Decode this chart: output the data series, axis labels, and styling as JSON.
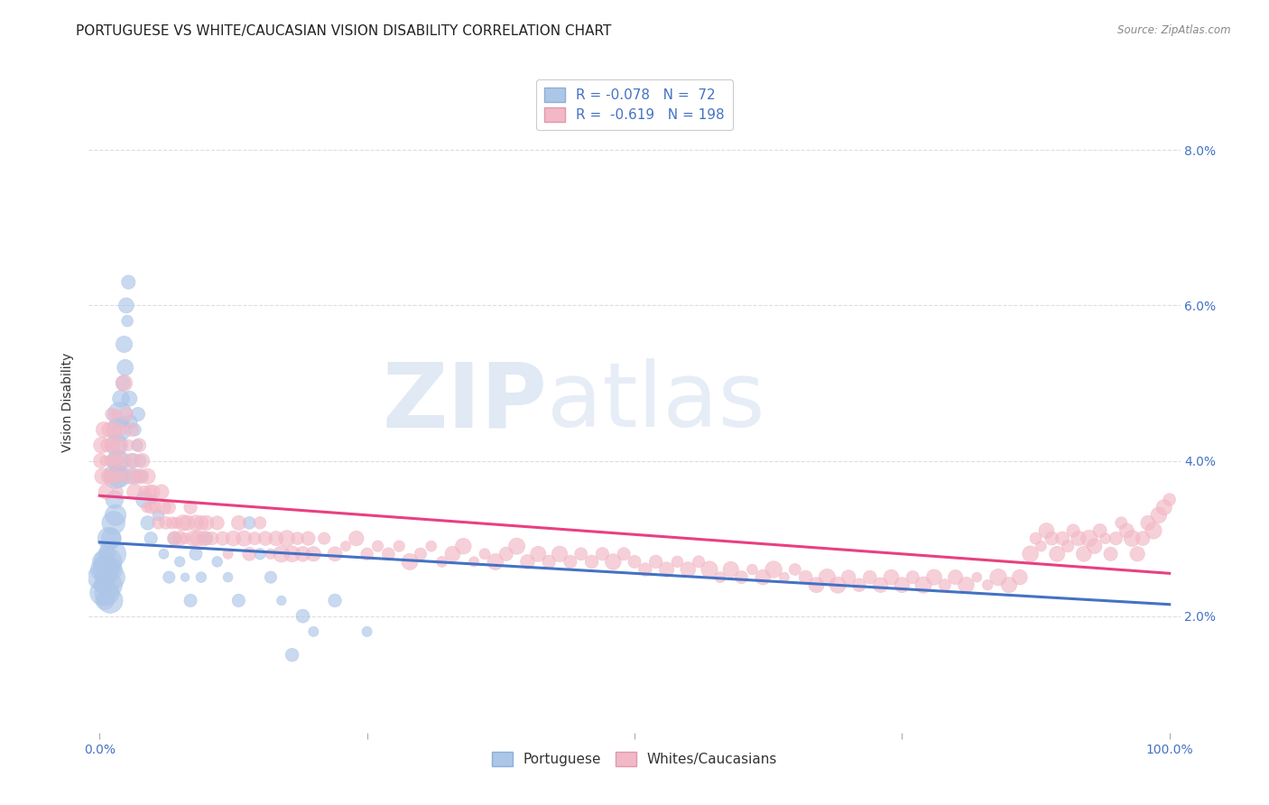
{
  "title": "PORTUGUESE VS WHITE/CAUCASIAN VISION DISABILITY CORRELATION CHART",
  "source": "Source: ZipAtlas.com",
  "ylabel": "Vision Disability",
  "ytick_labels": [
    "2.0%",
    "4.0%",
    "6.0%",
    "8.0%"
  ],
  "ytick_values": [
    0.02,
    0.04,
    0.06,
    0.08
  ],
  "xtick_labels": [
    "0.0%",
    "",
    "",
    "",
    "100.0%"
  ],
  "xtick_values": [
    0.0,
    0.25,
    0.5,
    0.75,
    1.0
  ],
  "portuguese_scatter": [
    [
      0.001,
      0.025
    ],
    [
      0.002,
      0.024
    ],
    [
      0.003,
      0.026
    ],
    [
      0.003,
      0.023
    ],
    [
      0.004,
      0.027
    ],
    [
      0.005,
      0.025
    ],
    [
      0.005,
      0.022
    ],
    [
      0.006,
      0.026
    ],
    [
      0.006,
      0.024
    ],
    [
      0.007,
      0.028
    ],
    [
      0.007,
      0.023
    ],
    [
      0.008,
      0.027
    ],
    [
      0.008,
      0.025
    ],
    [
      0.009,
      0.03
    ],
    [
      0.009,
      0.024
    ],
    [
      0.01,
      0.026
    ],
    [
      0.01,
      0.022
    ],
    [
      0.011,
      0.03
    ],
    [
      0.012,
      0.028
    ],
    [
      0.012,
      0.025
    ],
    [
      0.013,
      0.032
    ],
    [
      0.014,
      0.035
    ],
    [
      0.015,
      0.033
    ],
    [
      0.015,
      0.038
    ],
    [
      0.016,
      0.042
    ],
    [
      0.017,
      0.04
    ],
    [
      0.018,
      0.044
    ],
    [
      0.018,
      0.038
    ],
    [
      0.019,
      0.046
    ],
    [
      0.02,
      0.048
    ],
    [
      0.021,
      0.045
    ],
    [
      0.022,
      0.05
    ],
    [
      0.023,
      0.055
    ],
    [
      0.024,
      0.052
    ],
    [
      0.025,
      0.06
    ],
    [
      0.026,
      0.058
    ],
    [
      0.027,
      0.063
    ],
    [
      0.028,
      0.048
    ],
    [
      0.029,
      0.045
    ],
    [
      0.03,
      0.04
    ],
    [
      0.032,
      0.038
    ],
    [
      0.033,
      0.044
    ],
    [
      0.035,
      0.042
    ],
    [
      0.036,
      0.046
    ],
    [
      0.038,
      0.04
    ],
    [
      0.04,
      0.038
    ],
    [
      0.042,
      0.035
    ],
    [
      0.045,
      0.032
    ],
    [
      0.048,
      0.03
    ],
    [
      0.05,
      0.035
    ],
    [
      0.055,
      0.033
    ],
    [
      0.06,
      0.028
    ],
    [
      0.065,
      0.025
    ],
    [
      0.07,
      0.03
    ],
    [
      0.075,
      0.027
    ],
    [
      0.08,
      0.025
    ],
    [
      0.085,
      0.022
    ],
    [
      0.09,
      0.028
    ],
    [
      0.095,
      0.025
    ],
    [
      0.1,
      0.03
    ],
    [
      0.11,
      0.027
    ],
    [
      0.12,
      0.025
    ],
    [
      0.13,
      0.022
    ],
    [
      0.14,
      0.032
    ],
    [
      0.15,
      0.028
    ],
    [
      0.16,
      0.025
    ],
    [
      0.17,
      0.022
    ],
    [
      0.18,
      0.015
    ],
    [
      0.19,
      0.02
    ],
    [
      0.2,
      0.018
    ],
    [
      0.22,
      0.022
    ],
    [
      0.25,
      0.018
    ]
  ],
  "whites_scatter": [
    [
      0.001,
      0.04
    ],
    [
      0.002,
      0.042
    ],
    [
      0.003,
      0.038
    ],
    [
      0.004,
      0.044
    ],
    [
      0.005,
      0.04
    ],
    [
      0.006,
      0.036
    ],
    [
      0.007,
      0.042
    ],
    [
      0.008,
      0.038
    ],
    [
      0.009,
      0.044
    ],
    [
      0.01,
      0.04
    ],
    [
      0.011,
      0.046
    ],
    [
      0.012,
      0.042
    ],
    [
      0.013,
      0.038
    ],
    [
      0.014,
      0.044
    ],
    [
      0.015,
      0.04
    ],
    [
      0.016,
      0.046
    ],
    [
      0.017,
      0.036
    ],
    [
      0.018,
      0.042
    ],
    [
      0.019,
      0.038
    ],
    [
      0.02,
      0.044
    ],
    [
      0.022,
      0.04
    ],
    [
      0.023,
      0.05
    ],
    [
      0.025,
      0.046
    ],
    [
      0.027,
      0.042
    ],
    [
      0.028,
      0.038
    ],
    [
      0.03,
      0.044
    ],
    [
      0.032,
      0.04
    ],
    [
      0.033,
      0.036
    ],
    [
      0.035,
      0.038
    ],
    [
      0.037,
      0.042
    ],
    [
      0.038,
      0.038
    ],
    [
      0.04,
      0.04
    ],
    [
      0.042,
      0.036
    ],
    [
      0.044,
      0.034
    ],
    [
      0.045,
      0.038
    ],
    [
      0.047,
      0.036
    ],
    [
      0.048,
      0.034
    ],
    [
      0.05,
      0.036
    ],
    [
      0.052,
      0.034
    ],
    [
      0.055,
      0.032
    ],
    [
      0.058,
      0.036
    ],
    [
      0.06,
      0.034
    ],
    [
      0.062,
      0.032
    ],
    [
      0.065,
      0.034
    ],
    [
      0.068,
      0.032
    ],
    [
      0.07,
      0.03
    ],
    [
      0.072,
      0.032
    ],
    [
      0.075,
      0.03
    ],
    [
      0.078,
      0.032
    ],
    [
      0.08,
      0.03
    ],
    [
      0.082,
      0.032
    ],
    [
      0.085,
      0.034
    ],
    [
      0.088,
      0.03
    ],
    [
      0.09,
      0.032
    ],
    [
      0.092,
      0.03
    ],
    [
      0.095,
      0.032
    ],
    [
      0.098,
      0.03
    ],
    [
      0.1,
      0.032
    ],
    [
      0.105,
      0.03
    ],
    [
      0.11,
      0.032
    ],
    [
      0.115,
      0.03
    ],
    [
      0.12,
      0.028
    ],
    [
      0.125,
      0.03
    ],
    [
      0.13,
      0.032
    ],
    [
      0.135,
      0.03
    ],
    [
      0.14,
      0.028
    ],
    [
      0.145,
      0.03
    ],
    [
      0.15,
      0.032
    ],
    [
      0.155,
      0.03
    ],
    [
      0.16,
      0.028
    ],
    [
      0.165,
      0.03
    ],
    [
      0.17,
      0.028
    ],
    [
      0.175,
      0.03
    ],
    [
      0.18,
      0.028
    ],
    [
      0.185,
      0.03
    ],
    [
      0.19,
      0.028
    ],
    [
      0.195,
      0.03
    ],
    [
      0.2,
      0.028
    ],
    [
      0.21,
      0.03
    ],
    [
      0.22,
      0.028
    ],
    [
      0.23,
      0.029
    ],
    [
      0.24,
      0.03
    ],
    [
      0.25,
      0.028
    ],
    [
      0.26,
      0.029
    ],
    [
      0.27,
      0.028
    ],
    [
      0.28,
      0.029
    ],
    [
      0.29,
      0.027
    ],
    [
      0.3,
      0.028
    ],
    [
      0.31,
      0.029
    ],
    [
      0.32,
      0.027
    ],
    [
      0.33,
      0.028
    ],
    [
      0.34,
      0.029
    ],
    [
      0.35,
      0.027
    ],
    [
      0.36,
      0.028
    ],
    [
      0.37,
      0.027
    ],
    [
      0.38,
      0.028
    ],
    [
      0.39,
      0.029
    ],
    [
      0.4,
      0.027
    ],
    [
      0.41,
      0.028
    ],
    [
      0.42,
      0.027
    ],
    [
      0.43,
      0.028
    ],
    [
      0.44,
      0.027
    ],
    [
      0.45,
      0.028
    ],
    [
      0.46,
      0.027
    ],
    [
      0.47,
      0.028
    ],
    [
      0.48,
      0.027
    ],
    [
      0.49,
      0.028
    ],
    [
      0.5,
      0.027
    ],
    [
      0.51,
      0.026
    ],
    [
      0.52,
      0.027
    ],
    [
      0.53,
      0.026
    ],
    [
      0.54,
      0.027
    ],
    [
      0.55,
      0.026
    ],
    [
      0.56,
      0.027
    ],
    [
      0.57,
      0.026
    ],
    [
      0.58,
      0.025
    ],
    [
      0.59,
      0.026
    ],
    [
      0.6,
      0.025
    ],
    [
      0.61,
      0.026
    ],
    [
      0.62,
      0.025
    ],
    [
      0.63,
      0.026
    ],
    [
      0.64,
      0.025
    ],
    [
      0.65,
      0.026
    ],
    [
      0.66,
      0.025
    ],
    [
      0.67,
      0.024
    ],
    [
      0.68,
      0.025
    ],
    [
      0.69,
      0.024
    ],
    [
      0.7,
      0.025
    ],
    [
      0.71,
      0.024
    ],
    [
      0.72,
      0.025
    ],
    [
      0.73,
      0.024
    ],
    [
      0.74,
      0.025
    ],
    [
      0.75,
      0.024
    ],
    [
      0.76,
      0.025
    ],
    [
      0.77,
      0.024
    ],
    [
      0.78,
      0.025
    ],
    [
      0.79,
      0.024
    ],
    [
      0.8,
      0.025
    ],
    [
      0.81,
      0.024
    ],
    [
      0.82,
      0.025
    ],
    [
      0.83,
      0.024
    ],
    [
      0.84,
      0.025
    ],
    [
      0.85,
      0.024
    ],
    [
      0.86,
      0.025
    ],
    [
      0.87,
      0.028
    ],
    [
      0.875,
      0.03
    ],
    [
      0.88,
      0.029
    ],
    [
      0.885,
      0.031
    ],
    [
      0.89,
      0.03
    ],
    [
      0.895,
      0.028
    ],
    [
      0.9,
      0.03
    ],
    [
      0.905,
      0.029
    ],
    [
      0.91,
      0.031
    ],
    [
      0.915,
      0.03
    ],
    [
      0.92,
      0.028
    ],
    [
      0.925,
      0.03
    ],
    [
      0.93,
      0.029
    ],
    [
      0.935,
      0.031
    ],
    [
      0.94,
      0.03
    ],
    [
      0.945,
      0.028
    ],
    [
      0.95,
      0.03
    ],
    [
      0.955,
      0.032
    ],
    [
      0.96,
      0.031
    ],
    [
      0.965,
      0.03
    ],
    [
      0.97,
      0.028
    ],
    [
      0.975,
      0.03
    ],
    [
      0.98,
      0.032
    ],
    [
      0.985,
      0.031
    ],
    [
      0.99,
      0.033
    ],
    [
      0.995,
      0.034
    ],
    [
      1.0,
      0.035
    ]
  ],
  "blue_line": {
    "x0": 0.0,
    "y0": 0.0295,
    "x1": 1.0,
    "y1": 0.0215
  },
  "pink_line": {
    "x0": 0.0,
    "y0": 0.0355,
    "x1": 1.0,
    "y1": 0.0255
  },
  "xlim": [
    -0.01,
    1.01
  ],
  "ylim": [
    0.005,
    0.09
  ],
  "watermark_text": "ZIP",
  "watermark_text2": "atlas",
  "background_color": "#ffffff",
  "grid_color": "#dddddd",
  "title_color": "#222222",
  "scatter_blue_face": "#adc6e8",
  "scatter_blue_edge": "#adc6e8",
  "scatter_pink_face": "#f2b8c6",
  "scatter_pink_edge": "#f2b8c6",
  "line_blue_color": "#4472c4",
  "line_pink_color": "#e84080",
  "axis_label_color": "#4472c4",
  "title_fontsize": 11,
  "label_fontsize": 10,
  "tick_fontsize": 10,
  "legend_label_color": "#4472c4"
}
